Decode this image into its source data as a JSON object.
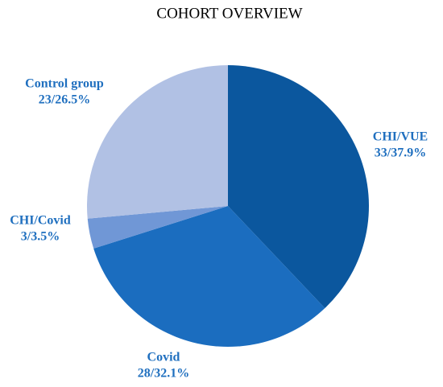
{
  "chart_data": {
    "type": "pie",
    "title": "COHORT OVERVIEW",
    "categories": [
      "CHI/VUE",
      "Covid",
      "CHI/Covid",
      "Control group"
    ],
    "values": [
      33,
      28,
      3,
      23
    ],
    "value_labels": [
      "33/37.9%",
      "28/32.1%",
      "3/3.5%",
      "23/26.5%"
    ],
    "colors": [
      "#0b579e",
      "#1b6dbf",
      "#7097d6",
      "#b1c1e4"
    ]
  }
}
